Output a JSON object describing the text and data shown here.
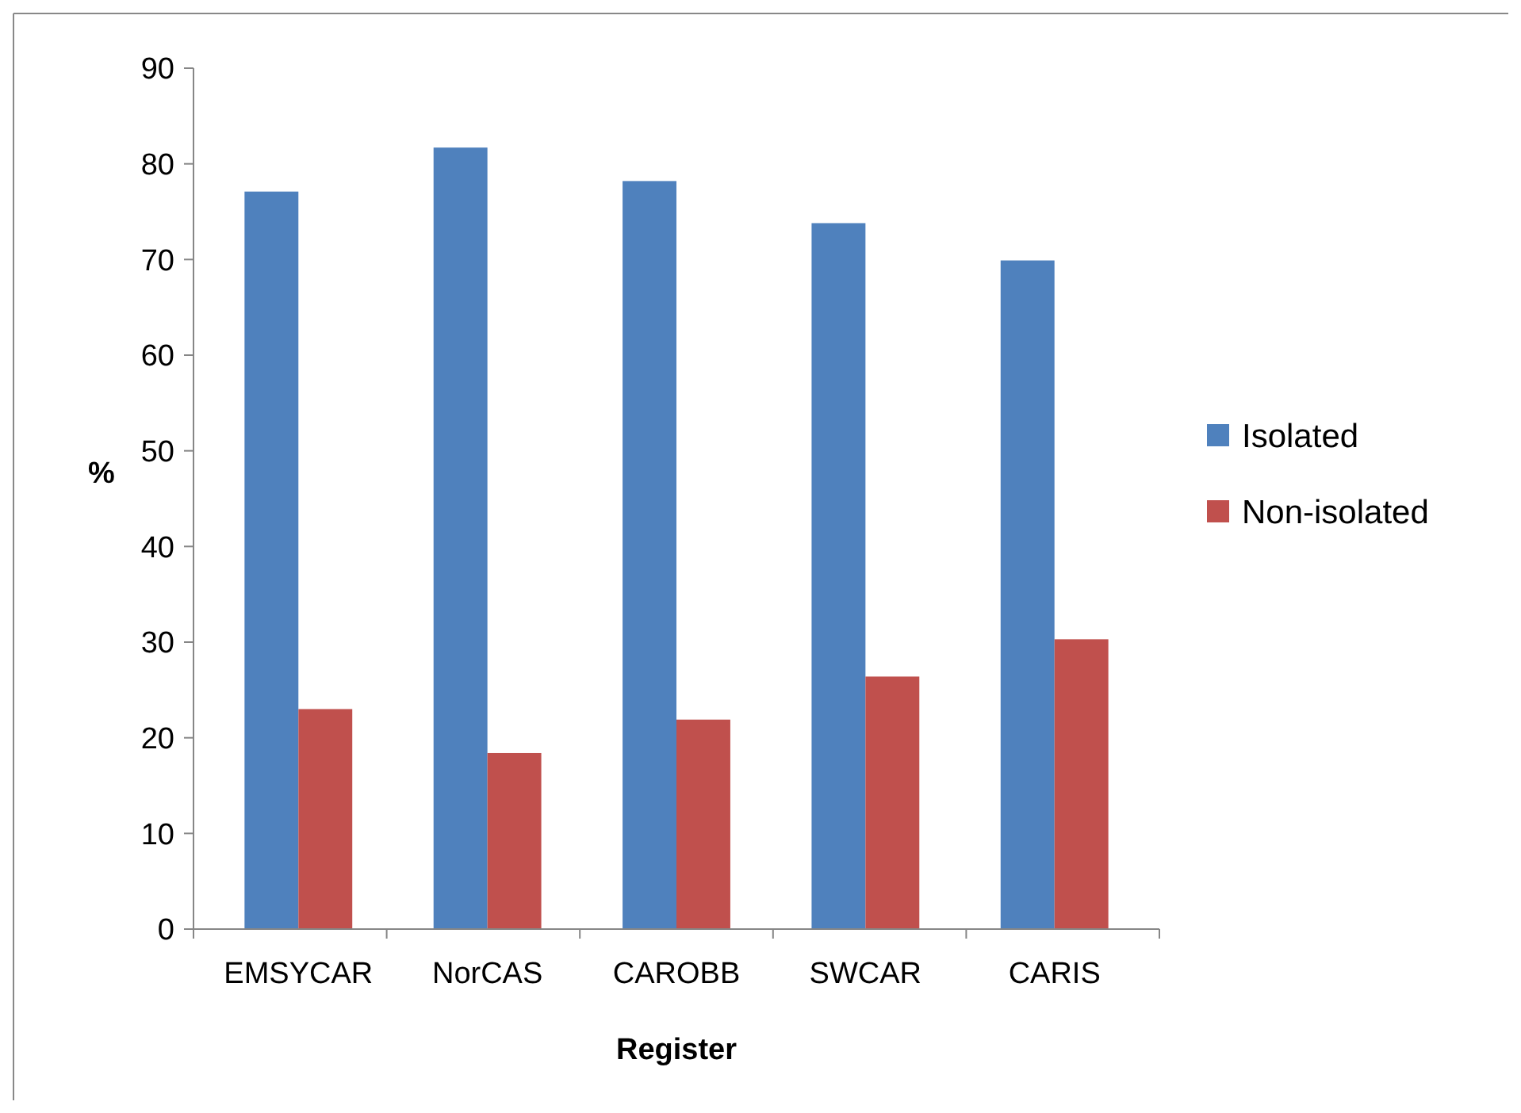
{
  "chart_data": {
    "type": "bar",
    "xlabel": "Register",
    "ylabel": "%",
    "categories": [
      "EMSYCAR",
      "NorCAS",
      "CAROBB",
      "SWCAR",
      "CARIS"
    ],
    "series": [
      {
        "name": "Isolated",
        "color": "#4f81bd",
        "values": [
          77.1,
          81.7,
          78.2,
          73.8,
          69.9
        ]
      },
      {
        "name": "Non-isolated",
        "color": "#c0504d",
        "values": [
          23.0,
          18.4,
          21.9,
          26.4,
          30.3
        ]
      }
    ],
    "ylim": [
      0,
      90
    ],
    "yticks": [
      0,
      10,
      20,
      30,
      40,
      50,
      60,
      70,
      80,
      90
    ],
    "grid": false,
    "legend": "right"
  }
}
